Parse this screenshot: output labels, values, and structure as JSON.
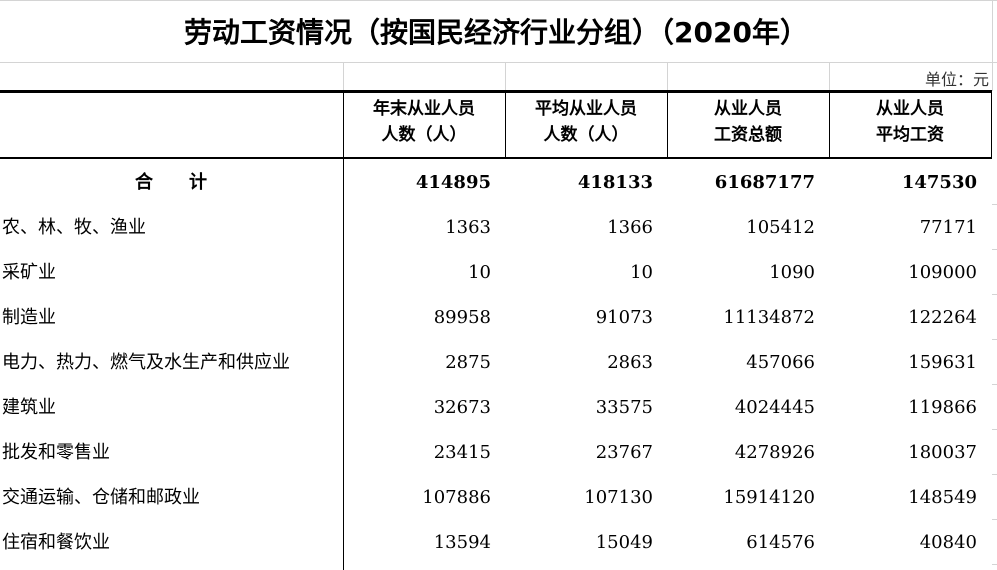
{
  "title": "劳动工资情况（按国民经济行业分组）（2020年）",
  "unit": "单位：元",
  "headers": [
    "年末从业人员\n人数（人）",
    "平均从业人员\n人数（人）",
    "从业人员\n工资总额",
    "从业人员\n平均工资"
  ],
  "header_lines": [
    [
      "年末从业人员",
      "人数（人）"
    ],
    [
      "平均从业人员",
      "人数（人）"
    ],
    [
      "从业人员",
      "工资总额"
    ],
    [
      "从业人员",
      "平均工资"
    ]
  ],
  "total": {
    "name": "合　　计",
    "values": [
      "414895",
      "418133",
      "61687177",
      "147530"
    ]
  },
  "rows": [
    {
      "name": "农、林、牧、渔业",
      "values": [
        "1363",
        "1366",
        "105412",
        "77171"
      ]
    },
    {
      "name": "采矿业",
      "values": [
        "10",
        "10",
        "1090",
        "109000"
      ]
    },
    {
      "name": "制造业",
      "values": [
        "89958",
        "91073",
        "11134872",
        "122264"
      ]
    },
    {
      "name": "电力、热力、燃气及水生产和供应业",
      "values": [
        "2875",
        "2863",
        "457066",
        "159631"
      ]
    },
    {
      "name": "建筑业",
      "values": [
        "32673",
        "33575",
        "4024445",
        "119866"
      ]
    },
    {
      "name": "批发和零售业",
      "values": [
        "23415",
        "23767",
        "4278926",
        "180037"
      ]
    },
    {
      "name": "交通运输、仓储和邮政业",
      "values": [
        "107886",
        "107130",
        "15914120",
        "148549"
      ]
    },
    {
      "name": "住宿和餐饮业",
      "values": [
        "13594",
        "15049",
        "614576",
        "40840"
      ]
    }
  ]
}
